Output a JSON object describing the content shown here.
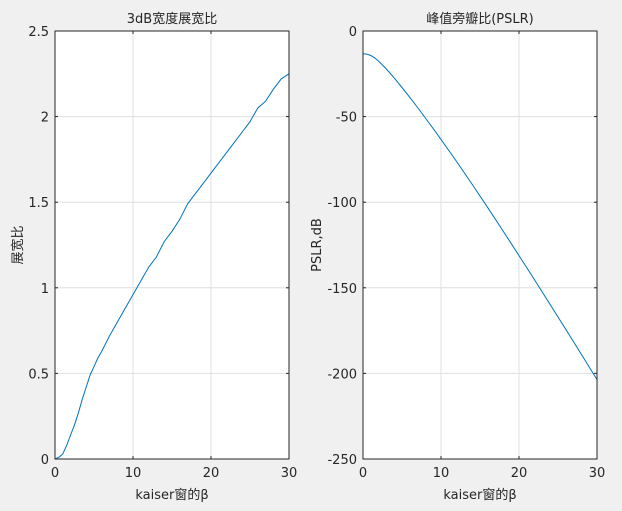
{
  "chart_data": [
    {
      "type": "line",
      "title": "3dB宽度展宽比",
      "xlabel": "kaiser窗的β",
      "ylabel": "展宽比",
      "xlim": [
        0,
        30
      ],
      "ylim": [
        0,
        2.5
      ],
      "xticks": [
        "0",
        "10",
        "20",
        "30"
      ],
      "yticks": [
        "0",
        "0.5",
        "1",
        "1.5",
        "2",
        "2.5"
      ],
      "grid": true,
      "line_color": "#0072bd",
      "series": [
        {
          "x": [
            0,
            0.5,
            1,
            1.5,
            2,
            2.5,
            3,
            3.5,
            4,
            4.5,
            5,
            5.5,
            6,
            7,
            8,
            9,
            10,
            11,
            12,
            13,
            14,
            15,
            16,
            17,
            18,
            19,
            20,
            21,
            22,
            23,
            24,
            25,
            26,
            27,
            28,
            29,
            30
          ],
          "values": [
            0,
            0.01,
            0.03,
            0.08,
            0.14,
            0.2,
            0.27,
            0.35,
            0.42,
            0.49,
            0.54,
            0.59,
            0.63,
            0.72,
            0.8,
            0.88,
            0.96,
            1.04,
            1.12,
            1.18,
            1.27,
            1.33,
            1.4,
            1.49,
            1.55,
            1.61,
            1.67,
            1.73,
            1.79,
            1.85,
            1.91,
            1.97,
            2.05,
            2.09,
            2.16,
            2.22,
            2.25
          ]
        }
      ]
    },
    {
      "type": "line",
      "title": "峰值旁瓣比(PSLR)",
      "xlabel": "kaiser窗的β",
      "ylabel": "PSLR,dB",
      "xlim": [
        0,
        30
      ],
      "ylim": [
        -250,
        0
      ],
      "xticks": [
        "0",
        "10",
        "20",
        "30"
      ],
      "yticks": [
        "0",
        "-50",
        "-100",
        "-150",
        "-200",
        "-250"
      ],
      "grid": true,
      "line_color": "#0072bd",
      "series": [
        {
          "x": [
            0,
            0.5,
            1,
            1.5,
            2,
            3,
            4,
            5,
            6,
            7,
            8,
            9,
            10,
            12,
            14,
            16,
            18,
            20,
            22,
            24,
            26,
            28,
            30
          ],
          "values": [
            -13.3,
            -13.5,
            -14.3,
            -15.7,
            -17.6,
            -22.2,
            -27.4,
            -33,
            -38.8,
            -44.7,
            -50.8,
            -57,
            -63.3,
            -76.2,
            -89.6,
            -103.2,
            -117.1,
            -131.2,
            -145.4,
            -159.8,
            -174.3,
            -188.9,
            -203.6
          ]
        }
      ]
    }
  ]
}
